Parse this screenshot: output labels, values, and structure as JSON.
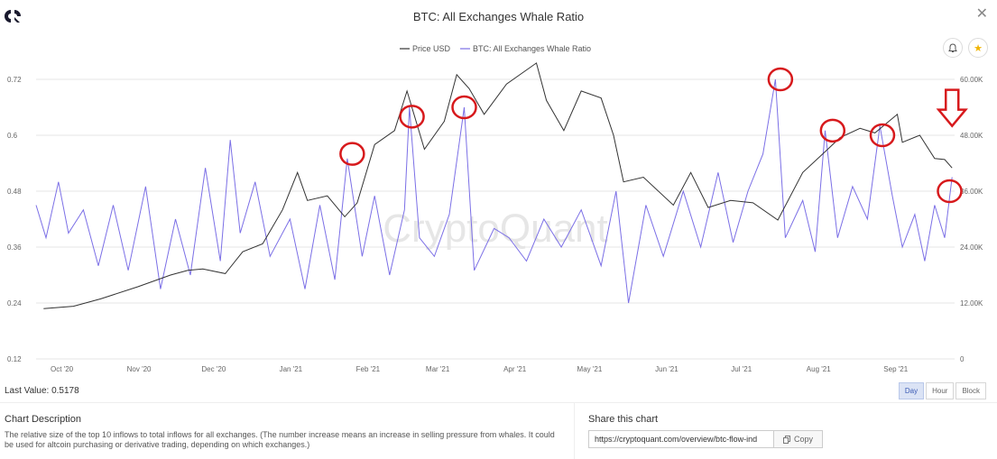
{
  "header": {
    "title": "BTC: All Exchanges Whale Ratio",
    "close_icon": "close-icon",
    "logo_icon": "cryptoquant-logo-icon"
  },
  "actions": {
    "bell_icon": "bell-icon",
    "star_icon": "star-icon"
  },
  "colors": {
    "price": "#333333",
    "ratio": "#7b6fe6",
    "annotation": "#d7191c",
    "watermark": "#e6e6e6"
  },
  "watermark": "CryptoQuant",
  "chart_data": {
    "type": "line",
    "legend_position": "top-center",
    "grid": "horizontal",
    "x_ticks": [
      "Oct '20",
      "Nov '20",
      "Dec '20",
      "Jan '21",
      "Feb '21",
      "Mar '21",
      "Apr '21",
      "May '21",
      "Jun '21",
      "Jul '21",
      "Aug '21",
      "Sep '21"
    ],
    "x_range": [
      "2020-09-25",
      "2021-09-29"
    ],
    "y_left": {
      "ticks": [
        "0.72",
        "0.6",
        "0.48",
        "0.36",
        "0.24",
        "0.12"
      ],
      "range": [
        0.12,
        0.72
      ]
    },
    "y_right": {
      "ticks": [
        "60.00K",
        "48.00K",
        "36.00K",
        "24.00K",
        "12.00K",
        "0"
      ],
      "range": [
        0,
        60000
      ]
    },
    "series": [
      {
        "name": "Price USD",
        "axis": "right",
        "points": [
          [
            "2020-09-28",
            10800
          ],
          [
            "2020-10-10",
            11300
          ],
          [
            "2020-10-21",
            12900
          ],
          [
            "2020-11-05",
            15500
          ],
          [
            "2020-11-18",
            18000
          ],
          [
            "2020-11-25",
            19000
          ],
          [
            "2020-12-01",
            19300
          ],
          [
            "2020-12-10",
            18300
          ],
          [
            "2020-12-17",
            23000
          ],
          [
            "2020-12-25",
            24700
          ],
          [
            "2021-01-02",
            32000
          ],
          [
            "2021-01-08",
            40000
          ],
          [
            "2021-01-12",
            34000
          ],
          [
            "2021-01-20",
            35000
          ],
          [
            "2021-01-27",
            30500
          ],
          [
            "2021-02-01",
            33500
          ],
          [
            "2021-02-08",
            46000
          ],
          [
            "2021-02-16",
            49000
          ],
          [
            "2021-02-21",
            57500
          ],
          [
            "2021-02-28",
            45000
          ],
          [
            "2021-03-08",
            51000
          ],
          [
            "2021-03-13",
            61000
          ],
          [
            "2021-03-18",
            58000
          ],
          [
            "2021-03-24",
            52500
          ],
          [
            "2021-04-02",
            59000
          ],
          [
            "2021-04-14",
            63500
          ],
          [
            "2021-04-18",
            55500
          ],
          [
            "2021-04-25",
            49000
          ],
          [
            "2021-05-02",
            57500
          ],
          [
            "2021-05-10",
            56000
          ],
          [
            "2021-05-15",
            48000
          ],
          [
            "2021-05-19",
            38000
          ],
          [
            "2021-05-27",
            39000
          ],
          [
            "2021-06-08",
            33000
          ],
          [
            "2021-06-15",
            40000
          ],
          [
            "2021-06-22",
            32500
          ],
          [
            "2021-07-01",
            34000
          ],
          [
            "2021-07-10",
            33500
          ],
          [
            "2021-07-20",
            29800
          ],
          [
            "2021-07-30",
            40000
          ],
          [
            "2021-08-07",
            44000
          ],
          [
            "2021-08-14",
            47500
          ],
          [
            "2021-08-22",
            49500
          ],
          [
            "2021-08-28",
            48500
          ],
          [
            "2021-09-06",
            52500
          ],
          [
            "2021-09-08",
            46500
          ],
          [
            "2021-09-15",
            48000
          ],
          [
            "2021-09-21",
            43000
          ],
          [
            "2021-09-25",
            42800
          ],
          [
            "2021-09-28",
            41000
          ]
        ]
      },
      {
        "name": "BTC: All Exchanges Whale Ratio",
        "axis": "left",
        "points": [
          [
            "2020-09-25",
            0.45
          ],
          [
            "2020-09-29",
            0.38
          ],
          [
            "2020-10-04",
            0.5
          ],
          [
            "2020-10-08",
            0.39
          ],
          [
            "2020-10-14",
            0.44
          ],
          [
            "2020-10-20",
            0.32
          ],
          [
            "2020-10-26",
            0.45
          ],
          [
            "2020-11-01",
            0.31
          ],
          [
            "2020-11-08",
            0.49
          ],
          [
            "2020-11-14",
            0.27
          ],
          [
            "2020-11-20",
            0.42
          ],
          [
            "2020-11-26",
            0.3
          ],
          [
            "2020-12-02",
            0.53
          ],
          [
            "2020-12-08",
            0.33
          ],
          [
            "2020-12-12",
            0.59
          ],
          [
            "2020-12-16",
            0.39
          ],
          [
            "2020-12-22",
            0.5
          ],
          [
            "2020-12-28",
            0.34
          ],
          [
            "2021-01-05",
            0.42
          ],
          [
            "2021-01-11",
            0.27
          ],
          [
            "2021-01-17",
            0.45
          ],
          [
            "2021-01-23",
            0.29
          ],
          [
            "2021-01-28",
            0.55
          ],
          [
            "2021-02-03",
            0.34
          ],
          [
            "2021-02-08",
            0.47
          ],
          [
            "2021-02-14",
            0.3
          ],
          [
            "2021-02-20",
            0.44
          ],
          [
            "2021-02-22",
            0.66
          ],
          [
            "2021-02-26",
            0.38
          ],
          [
            "2021-03-04",
            0.34
          ],
          [
            "2021-03-10",
            0.43
          ],
          [
            "2021-03-16",
            0.66
          ],
          [
            "2021-03-20",
            0.31
          ],
          [
            "2021-03-28",
            0.4
          ],
          [
            "2021-04-03",
            0.38
          ],
          [
            "2021-04-10",
            0.33
          ],
          [
            "2021-04-17",
            0.42
          ],
          [
            "2021-04-24",
            0.36
          ],
          [
            "2021-05-02",
            0.44
          ],
          [
            "2021-05-10",
            0.32
          ],
          [
            "2021-05-16",
            0.48
          ],
          [
            "2021-05-21",
            0.24
          ],
          [
            "2021-05-28",
            0.45
          ],
          [
            "2021-06-04",
            0.34
          ],
          [
            "2021-06-12",
            0.48
          ],
          [
            "2021-06-19",
            0.36
          ],
          [
            "2021-06-26",
            0.52
          ],
          [
            "2021-07-02",
            0.37
          ],
          [
            "2021-07-08",
            0.48
          ],
          [
            "2021-07-14",
            0.56
          ],
          [
            "2021-07-19",
            0.72
          ],
          [
            "2021-07-23",
            0.38
          ],
          [
            "2021-07-30",
            0.46
          ],
          [
            "2021-08-04",
            0.35
          ],
          [
            "2021-08-08",
            0.61
          ],
          [
            "2021-08-13",
            0.38
          ],
          [
            "2021-08-19",
            0.49
          ],
          [
            "2021-08-25",
            0.42
          ],
          [
            "2021-08-30",
            0.62
          ],
          [
            "2021-09-04",
            0.47
          ],
          [
            "2021-09-08",
            0.36
          ],
          [
            "2021-09-13",
            0.43
          ],
          [
            "2021-09-17",
            0.33
          ],
          [
            "2021-09-21",
            0.45
          ],
          [
            "2021-09-25",
            0.38
          ],
          [
            "2021-09-28",
            0.51
          ]
        ]
      }
    ],
    "annotations": [
      {
        "shape": "ellipse",
        "at": [
          "2021-01-30",
          0.56
        ]
      },
      {
        "shape": "ellipse",
        "at": [
          "2021-02-23",
          0.64
        ]
      },
      {
        "shape": "ellipse",
        "at": [
          "2021-03-16",
          0.66
        ]
      },
      {
        "shape": "ellipse",
        "at": [
          "2021-07-21",
          0.72
        ]
      },
      {
        "shape": "ellipse",
        "at": [
          "2021-08-11",
          0.61
        ]
      },
      {
        "shape": "ellipse",
        "at": [
          "2021-08-31",
          0.6
        ]
      },
      {
        "shape": "ellipse",
        "at": [
          "2021-09-27",
          0.48
        ]
      },
      {
        "shape": "down-arrow",
        "at": [
          "2021-09-28",
          0.62
        ]
      }
    ]
  },
  "footer": {
    "last_value_label": "Last Value:",
    "last_value": "0.5178",
    "timeframes": [
      "Day",
      "Hour",
      "Block"
    ],
    "active_timeframe": "Day"
  },
  "description": {
    "title": "Chart Description",
    "text": "The relative size of the top 10 inflows to total inflows for all exchanges. (The number increase means an increase in selling pressure from whales. It could be used for altcoin purchasing or derivative trading, depending on which exchanges.)"
  },
  "share": {
    "title": "Share this chart",
    "url": "https://cryptoquant.com/overview/btc-flow-ind",
    "copy_label": "Copy"
  }
}
